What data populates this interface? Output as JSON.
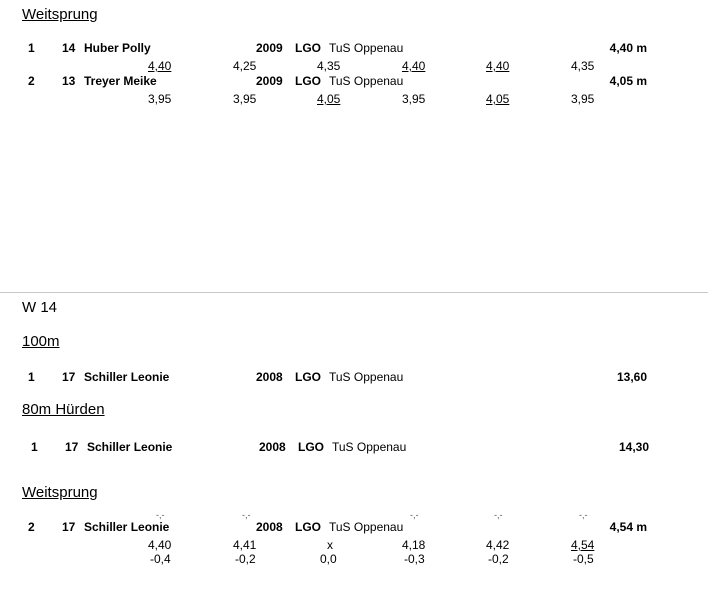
{
  "sec1": {
    "heading": "Weitsprung",
    "rows": [
      {
        "place": "1",
        "num": "14",
        "name": "Huber Polly",
        "year": "2009",
        "club": "LGO",
        "team": "TuS Oppenau",
        "result": "4,40 m",
        "attempts": [
          "4,40",
          "4,25",
          "4,35",
          "4,40",
          "4,40",
          "4,35"
        ]
      },
      {
        "place": "2",
        "num": "13",
        "name": "Treyer Meike",
        "year": "2009",
        "club": "LGO",
        "team": "TuS Oppenau",
        "result": "4,05 m",
        "attempts": [
          "3,95",
          "3,95",
          "4,05",
          "3,95",
          "4,05",
          "3,95"
        ]
      }
    ]
  },
  "group": "W 14",
  "sec2": {
    "heading": "100m",
    "row": {
      "place": "1",
      "num": "17",
      "name": "Schiller Leonie",
      "year": "2008",
      "club": "LGO",
      "team": "TuS Oppenau",
      "result": "13,60"
    }
  },
  "sec3": {
    "heading": "80m Hürden",
    "row": {
      "place": "1",
      "num": "17",
      "name": "Schiller Leonie",
      "year": "2008",
      "club": "LGO",
      "team": "TuS Oppenau",
      "result": "14,30"
    }
  },
  "sec4": {
    "heading": "Weitsprung",
    "row": {
      "place": "2",
      "num": "17",
      "name": "Schiller Leonie",
      "year": "2008",
      "club": "LGO",
      "team": "TuS Oppenau",
      "result": "4,54 m",
      "attempts": [
        "4,40",
        "4,41",
        "x",
        "4,18",
        "4,42",
        "4,54"
      ],
      "winds": [
        "-0,4",
        "-0,2",
        "0,0",
        "-0,3",
        "-0,2",
        "-0,5"
      ]
    }
  }
}
